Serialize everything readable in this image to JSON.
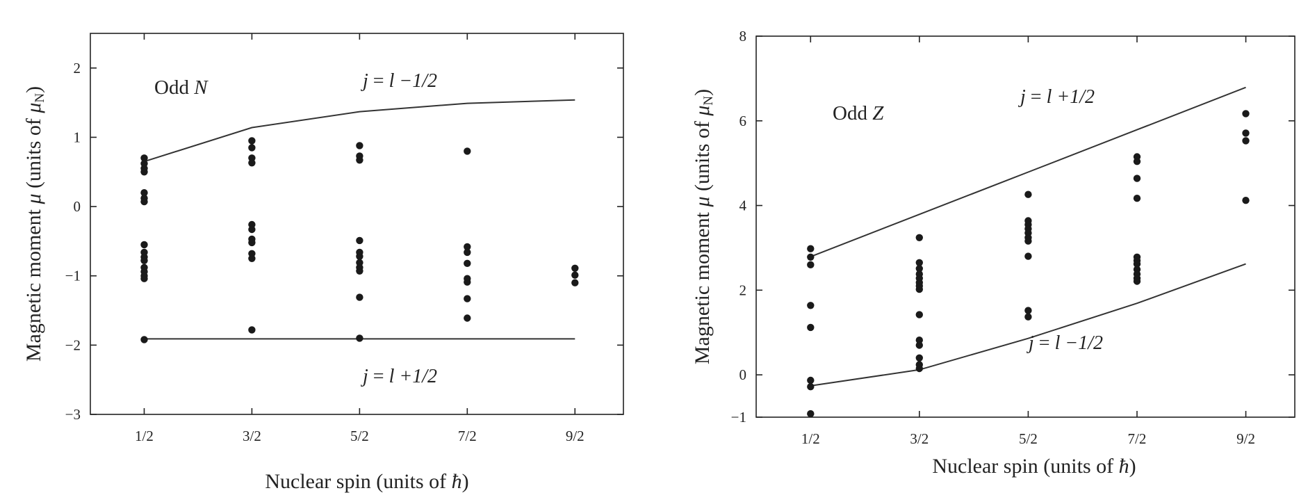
{
  "chart_data": [
    {
      "type": "scatter",
      "panel_label": "Odd N",
      "panel_label_main": "Odd ",
      "panel_label_var": "N",
      "xlabel": "Nuclear spin (units of ħ)",
      "xlabel_main": "Nuclear spin (units of ",
      "xlabel_sym": "ħ",
      "xlabel_close": ")",
      "ylabel": "Magnetic moment μ (units of μN)",
      "ylabel_main": "Magnetic moment ",
      "ylabel_mu": "μ",
      "ylabel_units": " (units of ",
      "ylabel_mu2": "μ",
      "ylabel_sub": "N",
      "ylabel_close": ")",
      "categories": [
        "1/2",
        "3/2",
        "5/2",
        "7/2",
        "9/2"
      ],
      "x_values": [
        0.5,
        1.5,
        2.5,
        3.5,
        4.5
      ],
      "xlim": [
        0,
        4.95
      ],
      "ylim": [
        -3,
        2.5
      ],
      "yticks": [
        -3,
        -2,
        -1,
        0,
        1,
        2
      ],
      "ytick_labels": [
        "−3",
        "−2",
        "−1",
        "0",
        "1",
        "2"
      ],
      "lines": [
        {
          "label": "j = l −1/2",
          "label_lhs": "j",
          "label_eq": " = ",
          "label_l": "l",
          "label_rest": " −1/2",
          "x": [
            0.5,
            1.5,
            2.5,
            3.5,
            4.5
          ],
          "y": [
            0.65,
            1.14,
            1.37,
            1.49,
            1.54
          ]
        },
        {
          "label": "j = l +1/2",
          "label_lhs": "j",
          "label_eq": " = ",
          "label_l": "l",
          "label_rest": " +1/2",
          "x": [
            0.5,
            1.5,
            2.5,
            3.5,
            4.5
          ],
          "y": [
            -1.91,
            -1.91,
            -1.91,
            -1.91,
            -1.91
          ]
        }
      ],
      "points": [
        [
          0.5,
          0.7
        ],
        [
          0.5,
          0.62
        ],
        [
          0.5,
          0.55
        ],
        [
          0.5,
          0.5
        ],
        [
          0.5,
          0.2
        ],
        [
          0.5,
          0.12
        ],
        [
          0.5,
          0.07
        ],
        [
          0.5,
          -0.55
        ],
        [
          0.5,
          -0.66
        ],
        [
          0.5,
          -0.73
        ],
        [
          0.5,
          -0.78
        ],
        [
          0.5,
          -0.88
        ],
        [
          0.5,
          -0.94
        ],
        [
          0.5,
          -1.0
        ],
        [
          0.5,
          -1.04
        ],
        [
          0.5,
          -1.92
        ],
        [
          1.5,
          0.95
        ],
        [
          1.5,
          0.85
        ],
        [
          1.5,
          0.7
        ],
        [
          1.5,
          0.63
        ],
        [
          1.5,
          -0.26
        ],
        [
          1.5,
          -0.33
        ],
        [
          1.5,
          -0.47
        ],
        [
          1.5,
          -0.52
        ],
        [
          1.5,
          -0.68
        ],
        [
          1.5,
          -0.75
        ],
        [
          1.5,
          -1.78
        ],
        [
          2.5,
          0.88
        ],
        [
          2.5,
          0.73
        ],
        [
          2.5,
          0.67
        ],
        [
          2.5,
          -0.49
        ],
        [
          2.5,
          -0.66
        ],
        [
          2.5,
          -0.72
        ],
        [
          2.5,
          -0.81
        ],
        [
          2.5,
          -0.88
        ],
        [
          2.5,
          -0.93
        ],
        [
          2.5,
          -1.31
        ],
        [
          2.5,
          -1.9
        ],
        [
          3.5,
          0.8
        ],
        [
          3.5,
          -0.58
        ],
        [
          3.5,
          -0.66
        ],
        [
          3.5,
          -0.82
        ],
        [
          3.5,
          -1.04
        ],
        [
          3.5,
          -1.09
        ],
        [
          3.5,
          -1.33
        ],
        [
          3.5,
          -1.61
        ],
        [
          4.5,
          -0.89
        ],
        [
          4.5,
          -0.99
        ],
        [
          4.5,
          -1.1
        ]
      ]
    },
    {
      "type": "scatter",
      "panel_label": "Odd Z",
      "panel_label_main": "Odd ",
      "panel_label_var": "Z",
      "xlabel": "Nuclear spin (units of ħ)",
      "xlabel_main": "Nuclear spin (units of ",
      "xlabel_sym": "ħ",
      "xlabel_close": ")",
      "ylabel": "Magnetic moment μ (units of μN)",
      "ylabel_main": "Magnetic moment ",
      "ylabel_mu": "μ",
      "ylabel_units": " (units of ",
      "ylabel_mu2": "μ",
      "ylabel_sub": "N",
      "ylabel_close": ")",
      "categories": [
        "1/2",
        "3/2",
        "5/2",
        "7/2",
        "9/2"
      ],
      "x_values": [
        0.5,
        1.5,
        2.5,
        3.5,
        4.5
      ],
      "xlim": [
        0,
        4.95
      ],
      "ylim": [
        -1,
        8
      ],
      "yticks": [
        -1,
        0,
        2,
        4,
        6,
        8
      ],
      "ytick_labels": [
        "−1",
        "0",
        "2",
        "4",
        "6",
        "8"
      ],
      "lines": [
        {
          "label": "j = l +1/2",
          "label_lhs": "j",
          "label_eq": " = ",
          "label_l": "l",
          "label_rest": " +1/2",
          "x": [
            0.5,
            1.5,
            2.5,
            3.5,
            4.5
          ],
          "y": [
            2.79,
            3.79,
            4.79,
            5.79,
            6.79
          ]
        },
        {
          "label": "j = l −1/2",
          "label_lhs": "j",
          "label_eq": " = ",
          "label_l": "l",
          "label_rest": " −1/2",
          "x": [
            0.5,
            1.5,
            2.5,
            3.5,
            4.5
          ],
          "y": [
            -0.26,
            0.12,
            0.86,
            1.69,
            2.62
          ]
        }
      ],
      "points": [
        [
          0.5,
          2.98
        ],
        [
          0.5,
          2.78
        ],
        [
          0.5,
          2.6
        ],
        [
          0.5,
          1.64
        ],
        [
          0.5,
          1.12
        ],
        [
          0.5,
          -0.13
        ],
        [
          0.5,
          -0.28
        ],
        [
          0.5,
          -0.92
        ],
        [
          1.5,
          3.24
        ],
        [
          1.5,
          2.65
        ],
        [
          1.5,
          2.51
        ],
        [
          1.5,
          2.38
        ],
        [
          1.5,
          2.28
        ],
        [
          1.5,
          2.18
        ],
        [
          1.5,
          2.1
        ],
        [
          1.5,
          2.02
        ],
        [
          1.5,
          1.42
        ],
        [
          1.5,
          0.82
        ],
        [
          1.5,
          0.7
        ],
        [
          1.5,
          0.4
        ],
        [
          1.5,
          0.24
        ],
        [
          1.5,
          0.15
        ],
        [
          2.5,
          4.26
        ],
        [
          2.5,
          3.64
        ],
        [
          2.5,
          3.55
        ],
        [
          2.5,
          3.45
        ],
        [
          2.5,
          3.35
        ],
        [
          2.5,
          3.24
        ],
        [
          2.5,
          3.16
        ],
        [
          2.5,
          2.8
        ],
        [
          2.5,
          1.52
        ],
        [
          2.5,
          1.37
        ],
        [
          3.5,
          5.15
        ],
        [
          3.5,
          5.04
        ],
        [
          3.5,
          4.64
        ],
        [
          3.5,
          4.17
        ],
        [
          3.5,
          2.78
        ],
        [
          3.5,
          2.7
        ],
        [
          3.5,
          2.62
        ],
        [
          3.5,
          2.49
        ],
        [
          3.5,
          2.38
        ],
        [
          3.5,
          2.28
        ],
        [
          3.5,
          2.21
        ],
        [
          4.5,
          6.17
        ],
        [
          4.5,
          5.71
        ],
        [
          4.5,
          5.53
        ],
        [
          4.5,
          4.12
        ]
      ]
    }
  ]
}
